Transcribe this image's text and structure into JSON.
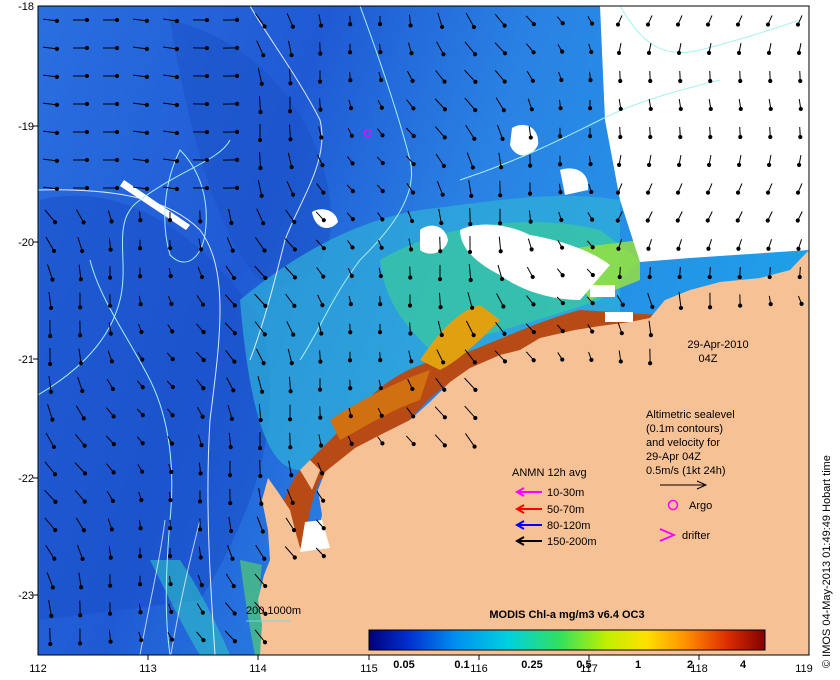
{
  "map": {
    "x_ticks": [
      "112",
      "113",
      "114",
      "115",
      "116",
      "117",
      "118",
      "119"
    ],
    "y_ticks": [
      "-18",
      "-19",
      "-20",
      "-21",
      "-22",
      "-23"
    ],
    "date_label": "29-Apr-2010",
    "time_label": "04Z",
    "altimetry_note": [
      "Altimetric sealevel",
      "(0.1m contours)",
      "and velocity for",
      "29-Apr 04Z",
      "0.5m/s (1kt 24h)"
    ],
    "anmn_title": "ANMN 12h avg",
    "anmn_legend": [
      {
        "label": "10-30m",
        "color": "#ff00ff"
      },
      {
        "label": "50-70m",
        "color": "#ff0000"
      },
      {
        "label": "80-120m",
        "color": "#0000ff"
      },
      {
        "label": "150-200m",
        "color": "#000000"
      }
    ],
    "argo_label": "Argo",
    "drifter_label": "drifter",
    "depth_contour_label": "200  1000m",
    "colorbar_title": "MODIS Chl-a mg/m3 v6.4 OC3",
    "colorbar_ticks": [
      "0.05",
      "0.1",
      "0.25",
      "0.5",
      "1",
      "2",
      "4"
    ],
    "credit": "© IMOS 04-May-2013 01:49:49 Hobart time",
    "colors": {
      "land": "#f7c196",
      "ocean_deep": "#1f5fd6",
      "ocean_mid": "#2e8fe8",
      "coastal_high": "#b02a10",
      "cloud": "#ffffff",
      "contour": "#9ee8ee"
    }
  }
}
